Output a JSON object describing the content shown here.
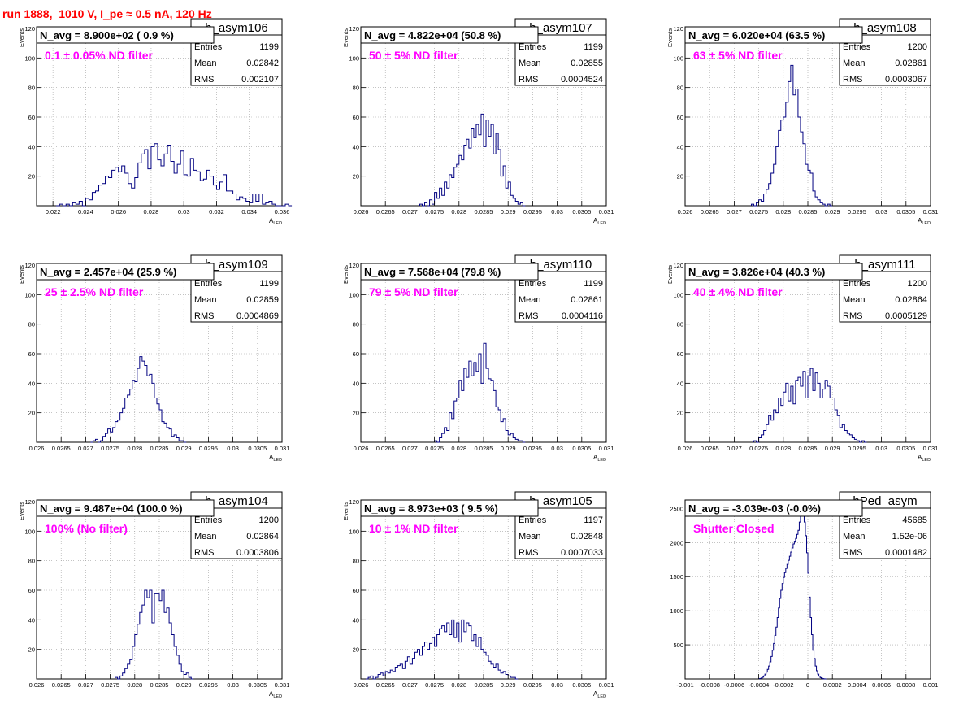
{
  "run_title": "run 1888,  1010 V, I_pe ≈ 0.5 nA, 120 Hz",
  "colors": {
    "title": "#ff0000",
    "annotation": "#ff00ff",
    "hist_line": "#000080",
    "grid": "#a0a0a0",
    "text": "#000000"
  },
  "chart_data": [
    {
      "type": "histogram",
      "name": "h_asym106",
      "xlabel_main": "A",
      "xlabel_sub": "LED",
      "ylabel": "Events",
      "xlim": [
        0.021,
        0.036
      ],
      "ylim": [
        0,
        120
      ],
      "xticks": [
        0.022,
        0.024,
        0.026,
        0.028,
        0.03,
        0.032,
        0.034,
        0.036
      ],
      "xtick_labels": [
        "0.022",
        "0.024",
        "0.026",
        "0.028",
        "0.03",
        "0.032",
        "0.034",
        "0.036"
      ],
      "yticks": [
        20,
        40,
        60,
        80,
        100,
        120
      ],
      "ytick_labels": [
        "20",
        "40",
        "60",
        "80",
        "100",
        "120"
      ],
      "bin_start": 0.0222,
      "bin_width": 0.0002,
      "values": [
        0,
        1,
        0,
        1,
        0,
        2,
        1,
        3,
        0,
        5,
        4,
        9,
        10,
        14,
        15,
        20,
        19,
        24,
        26,
        23,
        27,
        22,
        15,
        12,
        19,
        29,
        35,
        38,
        25,
        40,
        42,
        31,
        27,
        35,
        41,
        30,
        22,
        28,
        37,
        21,
        20,
        32,
        24,
        23,
        17,
        18,
        24,
        20,
        14,
        11,
        16,
        21,
        10,
        10,
        8,
        4,
        6,
        5,
        3,
        2,
        8,
        3,
        8,
        1,
        2,
        3,
        1,
        0,
        0,
        0,
        1,
        0
      ],
      "stats": {
        "Entries": "1199",
        "Mean": "0.02842",
        "RMS": "0.002107"
      },
      "n_avg": "N_avg = 8.900e+02 ( 0.9 %)",
      "annotation": "0.1 ± 0.05% ND filter"
    },
    {
      "type": "histogram",
      "name": "h_asym107",
      "xlabel_main": "A",
      "xlabel_sub": "LED",
      "ylabel": "Events",
      "xlim": [
        0.026,
        0.031
      ],
      "ylim": [
        0,
        120
      ],
      "xticks": [
        0.026,
        0.0265,
        0.027,
        0.0275,
        0.028,
        0.0285,
        0.029,
        0.0295,
        0.03,
        0.0305,
        0.031
      ],
      "xtick_labels": [
        "0.026",
        "0.0265",
        "0.027",
        "0.0275",
        "0.028",
        "0.0285",
        "0.029",
        "0.0295",
        "0.03",
        "0.0305",
        "0.031"
      ],
      "yticks": [
        20,
        40,
        60,
        80,
        100,
        120
      ],
      "ytick_labels": [
        "20",
        "40",
        "60",
        "80",
        "100",
        "120"
      ],
      "bin_start": 0.0272,
      "bin_width": 5e-05,
      "values": [
        1,
        0,
        2,
        0,
        4,
        1,
        9,
        5,
        12,
        7,
        16,
        12,
        21,
        19,
        26,
        28,
        34,
        31,
        41,
        45,
        39,
        52,
        46,
        55,
        48,
        62,
        40,
        58,
        47,
        55,
        35,
        49,
        38,
        20,
        27,
        12,
        16,
        7,
        5,
        3,
        1,
        2,
        0
      ],
      "stats": {
        "Entries": "1199",
        "Mean": "0.02855",
        "RMS": "0.0004524"
      },
      "n_avg": "N_avg = 4.822e+04 (50.8 %)",
      "annotation": "50 ± 5% ND filter"
    },
    {
      "type": "histogram",
      "name": "h_asym108",
      "xlabel_main": "A",
      "xlabel_sub": "LED",
      "ylabel": "Events",
      "xlim": [
        0.026,
        0.031
      ],
      "ylim": [
        0,
        120
      ],
      "xticks": [
        0.026,
        0.0265,
        0.027,
        0.0275,
        0.028,
        0.0285,
        0.029,
        0.0295,
        0.03,
        0.0305,
        0.031
      ],
      "xtick_labels": [
        "0.026",
        "0.0265",
        "0.027",
        "0.0275",
        "0.028",
        "0.0285",
        "0.029",
        "0.0295",
        "0.03",
        "0.0305",
        "0.031"
      ],
      "yticks": [
        20,
        40,
        60,
        80,
        100,
        120
      ],
      "ytick_labels": [
        "20",
        "40",
        "60",
        "80",
        "100",
        "120"
      ],
      "bin_start": 0.02735,
      "bin_width": 5e-05,
      "values": [
        1,
        0,
        2,
        4,
        3,
        8,
        11,
        15,
        22,
        28,
        40,
        51,
        58,
        60,
        70,
        84,
        95,
        75,
        79,
        60,
        50,
        42,
        28,
        24,
        22,
        10,
        6,
        4,
        2,
        1,
        0,
        1,
        0
      ],
      "stats": {
        "Entries": "1200",
        "Mean": "0.02861",
        "RMS": "0.0003067"
      },
      "n_avg": "N_avg = 6.020e+04 (63.5 %)",
      "annotation": "63 ± 5% ND filter"
    },
    {
      "type": "histogram",
      "name": "h_asym109",
      "xlabel_main": "A",
      "xlabel_sub": "LED",
      "ylabel": "Events",
      "xlim": [
        0.026,
        0.031
      ],
      "ylim": [
        0,
        120
      ],
      "xticks": [
        0.026,
        0.0265,
        0.027,
        0.0275,
        0.028,
        0.0285,
        0.029,
        0.0295,
        0.03,
        0.0305,
        0.031
      ],
      "xtick_labels": [
        "0.026",
        "0.0265",
        "0.027",
        "0.0275",
        "0.028",
        "0.0285",
        "0.029",
        "0.0295",
        "0.03",
        "0.0305",
        "0.031"
      ],
      "yticks": [
        20,
        40,
        60,
        80,
        100,
        120
      ],
      "ytick_labels": [
        "20",
        "40",
        "60",
        "80",
        "100",
        "120"
      ],
      "bin_start": 0.0271,
      "bin_width": 5e-05,
      "values": [
        0,
        1,
        2,
        0,
        1,
        4,
        6,
        9,
        7,
        10,
        14,
        15,
        20,
        23,
        30,
        32,
        36,
        42,
        41,
        50,
        58,
        55,
        52,
        45,
        46,
        40,
        30,
        26,
        22,
        14,
        13,
        10,
        9,
        4,
        5,
        3,
        1,
        1,
        0
      ],
      "stats": {
        "Entries": "1199",
        "Mean": "0.02859",
        "RMS": "0.0004869"
      },
      "n_avg": "N_avg = 2.457e+04 (25.9 %)",
      "annotation": "25 ± 2.5% ND filter"
    },
    {
      "type": "histogram",
      "name": "h_asym110",
      "xlabel_main": "A",
      "xlabel_sub": "LED",
      "ylabel": "Events",
      "xlim": [
        0.026,
        0.031
      ],
      "ylim": [
        0,
        120
      ],
      "xticks": [
        0.026,
        0.0265,
        0.027,
        0.0275,
        0.028,
        0.0285,
        0.029,
        0.0295,
        0.03,
        0.0305,
        0.031
      ],
      "xtick_labels": [
        "0.026",
        "0.0265",
        "0.027",
        "0.0275",
        "0.028",
        "0.0285",
        "0.029",
        "0.0295",
        "0.03",
        "0.0305",
        "0.031"
      ],
      "yticks": [
        20,
        40,
        60,
        80,
        100,
        120
      ],
      "ytick_labels": [
        "20",
        "40",
        "60",
        "80",
        "100",
        "120"
      ],
      "bin_start": 0.0275,
      "bin_width": 5e-05,
      "values": [
        1,
        0,
        3,
        6,
        10,
        8,
        20,
        16,
        28,
        30,
        42,
        35,
        50,
        44,
        55,
        45,
        54,
        48,
        60,
        40,
        67,
        50,
        43,
        42,
        35,
        24,
        22,
        14,
        16,
        8,
        5,
        6,
        3,
        2,
        1,
        1,
        0
      ],
      "stats": {
        "Entries": "1199",
        "Mean": "0.02861",
        "RMS": "0.0004116"
      },
      "n_avg": "N_avg = 7.568e+04 (79.8 %)",
      "annotation": "79 ± 5% ND filter"
    },
    {
      "type": "histogram",
      "name": "h_asym111",
      "xlabel_main": "A",
      "xlabel_sub": "LED",
      "ylabel": "Events",
      "xlim": [
        0.026,
        0.031
      ],
      "ylim": [
        0,
        120
      ],
      "xticks": [
        0.026,
        0.0265,
        0.027,
        0.0275,
        0.028,
        0.0285,
        0.029,
        0.0295,
        0.03,
        0.0305,
        0.031
      ],
      "xtick_labels": [
        "0.026",
        "0.0265",
        "0.027",
        "0.0275",
        "0.028",
        "0.0285",
        "0.029",
        "0.0295",
        "0.03",
        "0.0305",
        "0.031"
      ],
      "yticks": [
        20,
        40,
        60,
        80,
        100,
        120
      ],
      "ytick_labels": [
        "20",
        "40",
        "60",
        "80",
        "100",
        "120"
      ],
      "bin_start": 0.0274,
      "bin_width": 5e-05,
      "values": [
        1,
        0,
        3,
        5,
        8,
        12,
        18,
        15,
        22,
        20,
        30,
        25,
        34,
        40,
        28,
        38,
        26,
        42,
        44,
        38,
        48,
        30,
        45,
        50,
        35,
        47,
        40,
        30,
        36,
        42,
        38,
        30,
        30,
        22,
        18,
        10,
        12,
        8,
        6,
        5,
        3,
        2,
        1,
        0,
        1,
        0
      ],
      "stats": {
        "Entries": "1200",
        "Mean": "0.02864",
        "RMS": "0.0005129"
      },
      "n_avg": "N_avg = 3.826e+04 (40.3 %)",
      "annotation": "40 ± 4% ND filter"
    },
    {
      "type": "histogram",
      "name": "h_asym104",
      "xlabel_main": "A",
      "xlabel_sub": "LED",
      "ylabel": "Events",
      "xlim": [
        0.026,
        0.031
      ],
      "ylim": [
        0,
        120
      ],
      "xticks": [
        0.026,
        0.0265,
        0.027,
        0.0275,
        0.028,
        0.0285,
        0.029,
        0.0295,
        0.03,
        0.0305,
        0.031
      ],
      "xtick_labels": [
        "0.026",
        "0.0265",
        "0.027",
        "0.0275",
        "0.028",
        "0.0285",
        "0.029",
        "0.0295",
        "0.03",
        "0.0305",
        "0.031"
      ],
      "yticks": [
        20,
        40,
        60,
        80,
        100,
        120
      ],
      "ytick_labels": [
        "20",
        "40",
        "60",
        "80",
        "100",
        "120"
      ],
      "bin_start": 0.0276,
      "bin_width": 5e-05,
      "values": [
        1,
        0,
        2,
        4,
        7,
        10,
        13,
        22,
        30,
        37,
        45,
        50,
        60,
        55,
        60,
        38,
        58,
        58,
        53,
        60,
        45,
        48,
        38,
        30,
        22,
        16,
        10,
        5,
        3,
        4,
        1,
        0
      ],
      "stats": {
        "Entries": "1200",
        "Mean": "0.02864",
        "RMS": "0.0003806"
      },
      "n_avg": "N_avg = 9.487e+04 (100.0 %)",
      "annotation": "100% (No filter)"
    },
    {
      "type": "histogram",
      "name": "h_asym105",
      "xlabel_main": "A",
      "xlabel_sub": "LED",
      "ylabel": "Events",
      "xlim": [
        0.026,
        0.031
      ],
      "ylim": [
        0,
        120
      ],
      "xticks": [
        0.026,
        0.0265,
        0.027,
        0.0275,
        0.028,
        0.0285,
        0.029,
        0.0295,
        0.03,
        0.0305,
        0.031
      ],
      "xtick_labels": [
        "0.026",
        "0.0265",
        "0.027",
        "0.0275",
        "0.028",
        "0.0285",
        "0.029",
        "0.0295",
        "0.03",
        "0.0305",
        "0.031"
      ],
      "yticks": [
        20,
        40,
        60,
        80,
        100,
        120
      ],
      "ytick_labels": [
        "20",
        "40",
        "60",
        "80",
        "100",
        "120"
      ],
      "bin_start": 0.0261,
      "bin_width": 5e-05,
      "values": [
        0,
        1,
        2,
        0,
        1,
        3,
        4,
        2,
        5,
        4,
        6,
        5,
        8,
        9,
        10,
        7,
        12,
        15,
        10,
        14,
        18,
        20,
        16,
        22,
        25,
        20,
        24,
        28,
        22,
        30,
        34,
        36,
        32,
        38,
        30,
        40,
        28,
        38,
        25,
        40,
        32,
        38,
        36,
        26,
        30,
        22,
        28,
        20,
        18,
        16,
        12,
        10,
        8,
        10,
        6,
        4,
        5,
        3,
        2,
        1,
        1,
        0
      ],
      "stats": {
        "Entries": "1197",
        "Mean": "0.02848",
        "RMS": "0.0007033"
      },
      "n_avg": "N_avg = 8.973e+03 ( 9.5 %)",
      "annotation": "10 ± 1% ND filter"
    },
    {
      "type": "histogram",
      "name": "hPed_asym",
      "xlabel_main": "",
      "xlabel_sub": "",
      "ylabel": "",
      "xlim": [
        -0.001,
        0.001
      ],
      "ylim": [
        0,
        2600
      ],
      "xticks": [
        -0.001,
        -0.0008,
        -0.0006,
        -0.0004,
        -0.0002,
        0,
        0.0002,
        0.0004,
        0.0006,
        0.0008,
        0.001
      ],
      "xtick_labels": [
        "-0.001",
        "-0.0008",
        "-0.0006",
        "-0.0004",
        "-0.0002",
        "0",
        "0.0002",
        "0.0004",
        "0.0006",
        "0.0008",
        "0.001"
      ],
      "yticks": [
        500,
        1000,
        1500,
        2000,
        2500
      ],
      "ytick_labels": [
        "500",
        "1000",
        "1500",
        "2000",
        "2500"
      ],
      "bin_start": -0.0004,
      "bin_width": 1e-05,
      "values": [
        5,
        8,
        15,
        25,
        45,
        70,
        100,
        140,
        190,
        250,
        330,
        420,
        520,
        640,
        760,
        900,
        1040,
        1180,
        1300,
        1400,
        1490,
        1560,
        1620,
        1680,
        1740,
        1800,
        1860,
        1920,
        1980,
        2020,
        2060,
        2120,
        2180,
        2300,
        2420,
        2490,
        2440,
        2300,
        2100,
        1850,
        1550,
        1200,
        900,
        650,
        420,
        300,
        190,
        120,
        70,
        40,
        20,
        10,
        5,
        2,
        0
      ],
      "stats": {
        "Entries": "45685",
        "Mean": "1.52e-06",
        "RMS": "0.0001482"
      },
      "n_avg": "N_avg = -3.039e-03 (-0.0%)",
      "annotation": "Shutter Closed"
    }
  ]
}
